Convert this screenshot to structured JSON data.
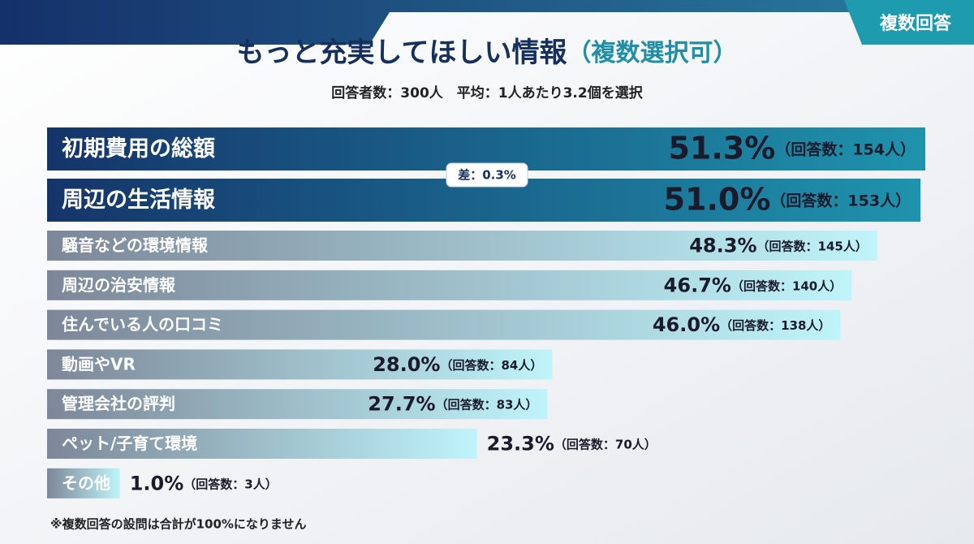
{
  "badge": "複数回答",
  "chart_data": {
    "type": "bar",
    "title": "もっと充実してほしい情報",
    "title_suffix": "（複数選択可）",
    "subtitle": "回答者数：300人　平均：1人あたり3.2個を選択",
    "annotation": "差：0.3%",
    "categories": [
      "初期費用の総額",
      "周辺の生活情報",
      "騒音などの環境情報",
      "周辺の治安情報",
      "住んでいる人の口コミ",
      "動画やVR",
      "管理会社の評判",
      "ペット/子育て環境",
      "その他"
    ],
    "values": [
      51.3,
      51.0,
      48.3,
      46.7,
      46.0,
      28.0,
      27.7,
      23.3,
      1.0
    ],
    "value_labels": [
      "51.3%",
      "51.0%",
      "48.3%",
      "46.7%",
      "46.0%",
      "28.0%",
      "27.7%",
      "23.3%",
      "1.0%"
    ],
    "count_labels": [
      "（回答数：154人）",
      "（回答数：153人）",
      "（回答数：145人）",
      "（回答数：140人）",
      "（回答数：138人）",
      "（回答数：84人）",
      "（回答数：83人）",
      "（回答数：70人）",
      "（回答数：3人）"
    ],
    "colors": [
      "#15346a",
      "#15346a",
      "#7c8799",
      "#7c8799",
      "#7c8799",
      "#7c8799",
      "#7c8799",
      "#7c8799",
      "#7c8799"
    ],
    "footnote": "※複数回答の設問は合計が100%になりません"
  }
}
